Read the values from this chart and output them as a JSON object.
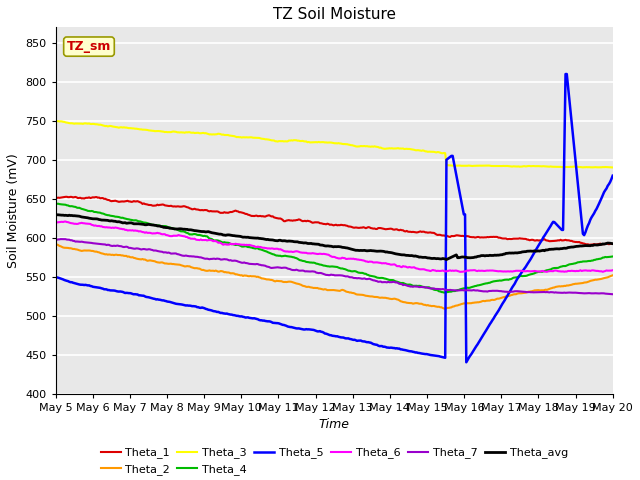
{
  "title": "TZ Soil Moisture",
  "xlabel": "Time",
  "ylabel": "Soil Moisture (mV)",
  "ylim": [
    400,
    870
  ],
  "yticks": [
    400,
    450,
    500,
    550,
    600,
    650,
    700,
    750,
    800,
    850
  ],
  "date_labels": [
    "May 5",
    "May 6",
    "May 7",
    "May 8",
    "May 9",
    "May 10",
    "May 11",
    "May 12",
    "May 13",
    "May 14",
    "May 15",
    "May 16",
    "May 17",
    "May 18",
    "May 19",
    "May 20"
  ],
  "annotation_text": "TZ_sm",
  "annotation_color": "#cc0000",
  "annotation_bg": "#ffffcc",
  "bg_color": "#e8e8e8",
  "series": {
    "Theta_1": {
      "color": "#dd0000",
      "lw": 1.5
    },
    "Theta_2": {
      "color": "#ff9900",
      "lw": 1.5
    },
    "Theta_3": {
      "color": "#ffff00",
      "lw": 1.5
    },
    "Theta_4": {
      "color": "#00bb00",
      "lw": 1.5
    },
    "Theta_5": {
      "color": "#0000ff",
      "lw": 1.8
    },
    "Theta_6": {
      "color": "#ff00ff",
      "lw": 1.5
    },
    "Theta_7": {
      "color": "#9900cc",
      "lw": 1.5
    },
    "Theta_avg": {
      "color": "#000000",
      "lw": 2.0
    }
  }
}
